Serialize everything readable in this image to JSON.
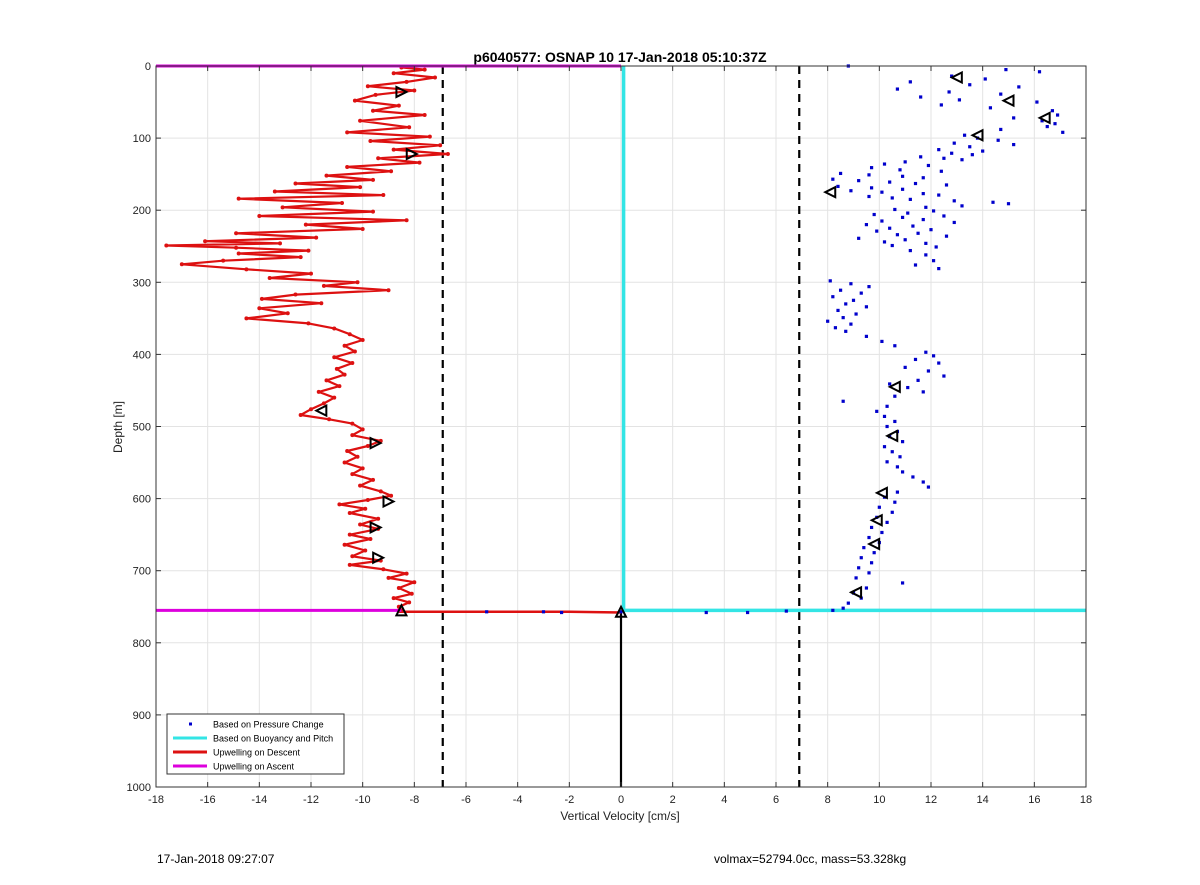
{
  "footer": {
    "timestamp": "17-Jan-2018 09:27:07",
    "info": "volmax=52794.0cc, mass=53.328kg"
  },
  "chart_data": {
    "type": "line",
    "title": "p6040577: OSNAP 10 17-Jan-2018 05:10:37Z",
    "xlabel": "Vertical Velocity [cm/s]",
    "ylabel": "Depth [m]",
    "xlim": [
      -18,
      18
    ],
    "ylim": [
      0,
      1000
    ],
    "y_reversed": true,
    "xticks": [
      -18,
      -16,
      -14,
      -12,
      -10,
      -8,
      -6,
      -4,
      -2,
      0,
      2,
      4,
      6,
      8,
      10,
      12,
      14,
      16,
      18
    ],
    "yticks": [
      0,
      100,
      200,
      300,
      400,
      500,
      600,
      700,
      800,
      900,
      1000
    ],
    "grid": true,
    "legend_position": "bottom-left",
    "colors": {
      "pressure": "#0000cc",
      "buoyancy": "#33e5e5",
      "descent": "#dd1111",
      "ascent": "#dd00dd",
      "dashed": "#000000",
      "grid": "#e3e3e3",
      "marker": "#000000"
    },
    "legend": [
      {
        "label": "Based on Pressure Change",
        "style": "dot",
        "color_key": "pressure"
      },
      {
        "label": "Based on Buoyancy and Pitch",
        "style": "line",
        "color_key": "buoyancy"
      },
      {
        "label": "Upwelling on Descent",
        "style": "line",
        "color_key": "descent"
      },
      {
        "label": "Upwelling on Ascent",
        "style": "line",
        "color_key": "ascent"
      }
    ],
    "dashed_lines_x": [
      -6.9,
      6.9
    ],
    "zero_line": {
      "x": 0,
      "y_range": [
        757,
        1000
      ]
    },
    "buoyancy_pitch": [
      [
        0.1,
        0
      ],
      [
        0.1,
        755
      ],
      [
        18,
        755
      ]
    ],
    "upwelling_ascent": [
      [
        [
          -18,
          0
        ],
        [
          0,
          0
        ]
      ],
      [
        [
          -18,
          755
        ],
        [
          -8.5,
          755
        ]
      ]
    ],
    "upwelling_descent_bottom": [
      [
        -8.6,
        757
      ],
      [
        -2,
        757
      ],
      [
        0,
        758
      ]
    ],
    "upwelling_descent": [
      [
        -8.5,
        2
      ],
      [
        -7.6,
        5
      ],
      [
        -8.8,
        10
      ],
      [
        -7.2,
        16
      ],
      [
        -8.3,
        22
      ],
      [
        -9.8,
        28
      ],
      [
        -8.0,
        34
      ],
      [
        -9.5,
        40
      ],
      [
        -10.3,
        48
      ],
      [
        -8.6,
        55
      ],
      [
        -9.6,
        62
      ],
      [
        -7.6,
        68
      ],
      [
        -10.1,
        76
      ],
      [
        -8.2,
        85
      ],
      [
        -10.6,
        92
      ],
      [
        -7.4,
        98
      ],
      [
        -9.7,
        104
      ],
      [
        -7.0,
        110
      ],
      [
        -8.8,
        116
      ],
      [
        -6.7,
        122
      ],
      [
        -9.4,
        128
      ],
      [
        -7.8,
        134
      ],
      [
        -10.6,
        140
      ],
      [
        -8.9,
        146
      ],
      [
        -11.4,
        152
      ],
      [
        -9.6,
        158
      ],
      [
        -12.6,
        163
      ],
      [
        -10.1,
        168
      ],
      [
        -13.4,
        174
      ],
      [
        -9.2,
        179
      ],
      [
        -14.8,
        184
      ],
      [
        -10.8,
        190
      ],
      [
        -13.1,
        196
      ],
      [
        -9.6,
        202
      ],
      [
        -14.0,
        208
      ],
      [
        -8.3,
        214
      ],
      [
        -12.2,
        220
      ],
      [
        -10.0,
        226
      ],
      [
        -14.9,
        232
      ],
      [
        -11.8,
        238
      ],
      [
        -16.1,
        243
      ],
      [
        -13.2,
        246
      ],
      [
        -17.6,
        249
      ],
      [
        -14.9,
        252
      ],
      [
        -12.1,
        256
      ],
      [
        -14.8,
        260
      ],
      [
        -12.4,
        265
      ],
      [
        -15.4,
        270
      ],
      [
        -17.0,
        275
      ],
      [
        -14.5,
        282
      ],
      [
        -12.0,
        288
      ],
      [
        -13.6,
        294
      ],
      [
        -10.2,
        300
      ],
      [
        -11.5,
        305
      ],
      [
        -9.0,
        311
      ],
      [
        -12.6,
        317
      ],
      [
        -13.9,
        323
      ],
      [
        -11.6,
        329
      ],
      [
        -14.0,
        336
      ],
      [
        -12.9,
        343
      ],
      [
        -14.5,
        350
      ],
      [
        -12.1,
        357
      ],
      [
        -11.1,
        364
      ],
      [
        -10.5,
        372
      ],
      [
        -10.0,
        380
      ],
      [
        -10.7,
        388
      ],
      [
        -10.3,
        396
      ],
      [
        -11.1,
        404
      ],
      [
        -10.4,
        412
      ],
      [
        -11.0,
        420
      ],
      [
        -10.7,
        428
      ],
      [
        -11.4,
        436
      ],
      [
        -10.9,
        444
      ],
      [
        -11.7,
        452
      ],
      [
        -11.1,
        460
      ],
      [
        -11.5,
        468
      ],
      [
        -12.0,
        476
      ],
      [
        -12.4,
        484
      ],
      [
        -11.3,
        490
      ],
      [
        -10.4,
        496
      ],
      [
        -10.0,
        504
      ],
      [
        -10.4,
        512
      ],
      [
        -9.3,
        520
      ],
      [
        -9.8,
        527
      ],
      [
        -10.6,
        534
      ],
      [
        -10.2,
        542
      ],
      [
        -10.7,
        550
      ],
      [
        -10.0,
        558
      ],
      [
        -10.4,
        566
      ],
      [
        -9.6,
        574
      ],
      [
        -10.1,
        582
      ],
      [
        -9.3,
        590
      ],
      [
        -8.9,
        596
      ],
      [
        -9.8,
        602
      ],
      [
        -10.9,
        608
      ],
      [
        -9.9,
        614
      ],
      [
        -10.5,
        620
      ],
      [
        -9.4,
        628
      ],
      [
        -10.1,
        636
      ],
      [
        -9.4,
        642
      ],
      [
        -10.5,
        650
      ],
      [
        -9.7,
        656
      ],
      [
        -10.7,
        664
      ],
      [
        -9.9,
        672
      ],
      [
        -10.4,
        680
      ],
      [
        -9.3,
        686
      ],
      [
        -10.5,
        692
      ],
      [
        -9.2,
        698
      ],
      [
        -8.3,
        704
      ],
      [
        -9.0,
        710
      ],
      [
        -8.0,
        716
      ],
      [
        -8.6,
        724
      ],
      [
        -8.1,
        732
      ],
      [
        -8.8,
        738
      ],
      [
        -8.2,
        744
      ],
      [
        -8.6,
        750
      ],
      [
        -8.5,
        755
      ]
    ],
    "pressure_change_points": [
      [
        8.8,
        0
      ],
      [
        14.9,
        5
      ],
      [
        16.2,
        8
      ],
      [
        12.8,
        14
      ],
      [
        14.1,
        18
      ],
      [
        11.2,
        22
      ],
      [
        13.5,
        26
      ],
      [
        15.4,
        29
      ],
      [
        10.7,
        32
      ],
      [
        12.7,
        36
      ],
      [
        14.7,
        39
      ],
      [
        11.6,
        43
      ],
      [
        13.1,
        47
      ],
      [
        16.1,
        50
      ],
      [
        12.4,
        54
      ],
      [
        14.3,
        58
      ],
      [
        16.7,
        62
      ],
      [
        16.9,
        68
      ],
      [
        15.2,
        72
      ],
      [
        16.3,
        76
      ],
      [
        16.8,
        80
      ],
      [
        16.5,
        84
      ],
      [
        14.7,
        88
      ],
      [
        17.1,
        92
      ],
      [
        13.3,
        96
      ],
      [
        13.8,
        100
      ],
      [
        14.6,
        103
      ],
      [
        12.9,
        107
      ],
      [
        15.2,
        109
      ],
      [
        13.5,
        112
      ],
      [
        12.3,
        116
      ],
      [
        14.0,
        118
      ],
      [
        12.8,
        121
      ],
      [
        13.6,
        123
      ],
      [
        11.6,
        126
      ],
      [
        12.5,
        128
      ],
      [
        13.2,
        130
      ],
      [
        11.0,
        133
      ],
      [
        10.2,
        136
      ],
      [
        11.9,
        138
      ],
      [
        9.7,
        141
      ],
      [
        10.8,
        144
      ],
      [
        12.4,
        146
      ],
      [
        8.5,
        149
      ],
      [
        9.6,
        151
      ],
      [
        10.9,
        153
      ],
      [
        11.7,
        155
      ],
      [
        8.2,
        157
      ],
      [
        9.2,
        159
      ],
      [
        10.4,
        161
      ],
      [
        11.4,
        163
      ],
      [
        12.6,
        165
      ],
      [
        8.4,
        167
      ],
      [
        9.7,
        169
      ],
      [
        10.9,
        171
      ],
      [
        8.9,
        173
      ],
      [
        10.1,
        175
      ],
      [
        11.7,
        177
      ],
      [
        12.3,
        179
      ],
      [
        9.6,
        181
      ],
      [
        10.5,
        183
      ],
      [
        11.2,
        185
      ],
      [
        12.9,
        187
      ],
      [
        14.4,
        189
      ],
      [
        15.0,
        191
      ],
      [
        13.2,
        194
      ],
      [
        11.8,
        196
      ],
      [
        10.6,
        199
      ],
      [
        12.1,
        201
      ],
      [
        11.1,
        204
      ],
      [
        9.8,
        206
      ],
      [
        12.5,
        208
      ],
      [
        10.9,
        210
      ],
      [
        11.7,
        213
      ],
      [
        10.1,
        215
      ],
      [
        12.9,
        217
      ],
      [
        9.5,
        220
      ],
      [
        11.3,
        222
      ],
      [
        10.4,
        225
      ],
      [
        12.0,
        227
      ],
      [
        9.9,
        229
      ],
      [
        11.5,
        232
      ],
      [
        10.7,
        234
      ],
      [
        12.6,
        236
      ],
      [
        9.2,
        239
      ],
      [
        11.0,
        241
      ],
      [
        10.2,
        244
      ],
      [
        11.8,
        246
      ],
      [
        10.5,
        249
      ],
      [
        12.2,
        251
      ],
      [
        11.2,
        256
      ],
      [
        11.8,
        262
      ],
      [
        12.1,
        270
      ],
      [
        11.4,
        276
      ],
      [
        12.3,
        281
      ],
      [
        8.1,
        298
      ],
      [
        8.9,
        302
      ],
      [
        9.6,
        306
      ],
      [
        8.5,
        311
      ],
      [
        9.3,
        315
      ],
      [
        8.2,
        320
      ],
      [
        9.0,
        325
      ],
      [
        8.7,
        330
      ],
      [
        9.5,
        334
      ],
      [
        8.4,
        339
      ],
      [
        9.1,
        344
      ],
      [
        8.6,
        349
      ],
      [
        8.0,
        354
      ],
      [
        8.9,
        358
      ],
      [
        8.3,
        363
      ],
      [
        8.7,
        368
      ],
      [
        9.5,
        375
      ],
      [
        10.1,
        382
      ],
      [
        10.6,
        388
      ],
      [
        11.8,
        397
      ],
      [
        12.1,
        402
      ],
      [
        11.4,
        407
      ],
      [
        12.3,
        412
      ],
      [
        11.0,
        418
      ],
      [
        11.9,
        423
      ],
      [
        12.5,
        430
      ],
      [
        11.5,
        436
      ],
      [
        10.4,
        441
      ],
      [
        11.1,
        446
      ],
      [
        11.7,
        452
      ],
      [
        10.6,
        458
      ],
      [
        8.6,
        465
      ],
      [
        10.3,
        472
      ],
      [
        9.9,
        479
      ],
      [
        10.2,
        486
      ],
      [
        10.6,
        493
      ],
      [
        10.3,
        500
      ],
      [
        10.7,
        507
      ],
      [
        10.4,
        514
      ],
      [
        10.9,
        521
      ],
      [
        10.2,
        528
      ],
      [
        10.5,
        535
      ],
      [
        10.8,
        542
      ],
      [
        10.3,
        549
      ],
      [
        10.7,
        556
      ],
      [
        10.9,
        563
      ],
      [
        11.3,
        570
      ],
      [
        11.7,
        577
      ],
      [
        11.9,
        584
      ],
      [
        10.7,
        591
      ],
      [
        10.2,
        598
      ],
      [
        10.6,
        605
      ],
      [
        10.0,
        612
      ],
      [
        10.5,
        619
      ],
      [
        9.9,
        626
      ],
      [
        10.3,
        633
      ],
      [
        9.7,
        640
      ],
      [
        10.1,
        647
      ],
      [
        9.6,
        654
      ],
      [
        10.0,
        661
      ],
      [
        9.4,
        668
      ],
      [
        9.8,
        675
      ],
      [
        9.3,
        682
      ],
      [
        9.7,
        689
      ],
      [
        9.2,
        696
      ],
      [
        9.6,
        703
      ],
      [
        9.1,
        710
      ],
      [
        10.9,
        717
      ],
      [
        9.5,
        724
      ],
      [
        9.0,
        731
      ],
      [
        9.3,
        738
      ],
      [
        8.8,
        745
      ],
      [
        8.6,
        752
      ],
      [
        8.2,
        755
      ],
      [
        6.4,
        756
      ],
      [
        4.9,
        758
      ],
      [
        3.3,
        758
      ],
      [
        -2.3,
        758
      ],
      [
        -3.0,
        757
      ],
      [
        -5.2,
        757
      ],
      [
        0.0,
        757
      ]
    ],
    "triangle_markers": [
      {
        "x": 13.0,
        "y": 16,
        "dir": "left"
      },
      {
        "x": 15.0,
        "y": 48,
        "dir": "left"
      },
      {
        "x": 16.4,
        "y": 72,
        "dir": "left"
      },
      {
        "x": 13.8,
        "y": 96,
        "dir": "left"
      },
      {
        "x": 8.1,
        "y": 175,
        "dir": "left"
      },
      {
        "x": 10.6,
        "y": 445,
        "dir": "left"
      },
      {
        "x": 10.5,
        "y": 513,
        "dir": "left"
      },
      {
        "x": 10.1,
        "y": 592,
        "dir": "left"
      },
      {
        "x": 9.9,
        "y": 630,
        "dir": "left"
      },
      {
        "x": 9.8,
        "y": 663,
        "dir": "left"
      },
      {
        "x": 9.1,
        "y": 730,
        "dir": "left"
      },
      {
        "x": -8.5,
        "y": 36,
        "dir": "right"
      },
      {
        "x": -8.1,
        "y": 122,
        "dir": "right"
      },
      {
        "x": -11.6,
        "y": 478,
        "dir": "left"
      },
      {
        "x": -9.5,
        "y": 523,
        "dir": "right"
      },
      {
        "x": -9.0,
        "y": 604,
        "dir": "right"
      },
      {
        "x": -9.5,
        "y": 640,
        "dir": "right"
      },
      {
        "x": -9.4,
        "y": 682,
        "dir": "right"
      },
      {
        "x": -8.5,
        "y": 755,
        "dir": "up"
      },
      {
        "x": 0.0,
        "y": 757,
        "dir": "up"
      }
    ]
  }
}
